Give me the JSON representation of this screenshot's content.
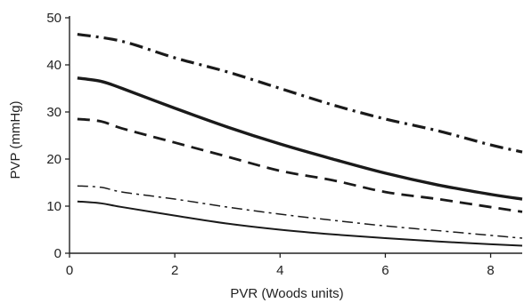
{
  "chart_data": {
    "type": "line",
    "title": "",
    "xlabel": "PVR (Woods units)",
    "ylabel": "PVP (mmHg)",
    "xlim": [
      0,
      8.6
    ],
    "ylim": [
      0,
      50
    ],
    "xticks": [
      0,
      2,
      4,
      6,
      8
    ],
    "yticks": [
      0,
      10,
      20,
      30,
      40,
      50
    ],
    "grid": false,
    "series": [
      {
        "style": "thick dash-dot",
        "x": [
          0.15,
          1,
          2,
          3,
          4,
          5,
          6,
          7,
          8,
          8.6
        ],
        "y": [
          46.5,
          45.0,
          41.5,
          38.5,
          35.0,
          31.5,
          28.5,
          26.0,
          23.0,
          21.5
        ]
      },
      {
        "style": "thick solid",
        "x": [
          0.15,
          0.6,
          1,
          2,
          3,
          4,
          5,
          6,
          7,
          8,
          8.6
        ],
        "y": [
          37.2,
          36.5,
          35.0,
          30.8,
          26.8,
          23.2,
          20.0,
          17.0,
          14.5,
          12.5,
          11.5
        ]
      },
      {
        "style": "thick dashed",
        "x": [
          0.15,
          0.6,
          1,
          2,
          3,
          4,
          5,
          6,
          7,
          8,
          8.6
        ],
        "y": [
          28.5,
          28.0,
          26.5,
          23.5,
          20.5,
          17.5,
          15.5,
          13.0,
          11.5,
          9.8,
          8.8
        ]
      },
      {
        "style": "thin dash-dot",
        "x": [
          0.15,
          0.6,
          1,
          2,
          3,
          4,
          5,
          6,
          7,
          8,
          8.6
        ],
        "y": [
          14.3,
          14.0,
          13.0,
          11.5,
          9.8,
          8.3,
          7.0,
          5.8,
          4.8,
          3.8,
          3.2
        ]
      },
      {
        "style": "thin solid",
        "x": [
          0.15,
          0.6,
          1,
          2,
          3,
          4,
          5,
          6,
          7,
          8,
          8.6
        ],
        "y": [
          11.0,
          10.6,
          9.8,
          8.0,
          6.3,
          5.0,
          4.0,
          3.2,
          2.5,
          1.9,
          1.6
        ]
      }
    ]
  }
}
